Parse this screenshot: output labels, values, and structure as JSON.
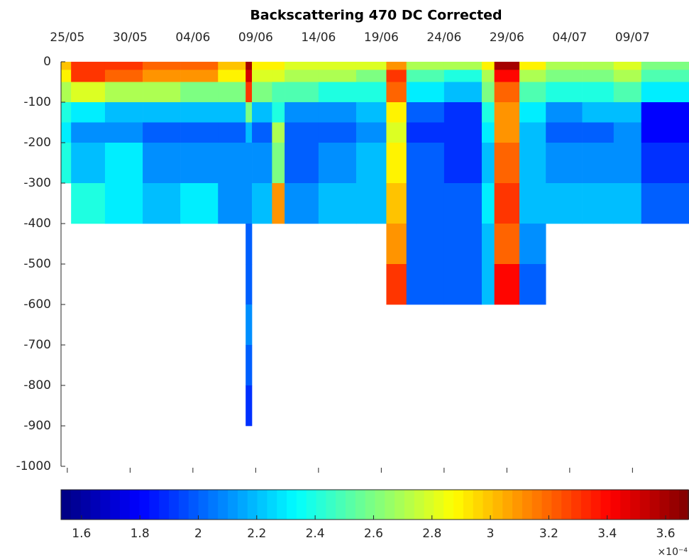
{
  "chart_data": {
    "type": "heatmap",
    "title": "Backscattering 470 DC Corrected",
    "colormap": "jet",
    "x_edges": [
      144.5,
      145.3,
      148,
      151,
      154,
      157,
      159.2,
      159.7,
      161.3,
      162.3,
      165,
      168,
      170.4,
      172,
      175,
      178,
      179,
      181,
      183.1,
      186,
      188.5,
      190.7,
      194.5
    ],
    "y_edges": [
      0,
      -20,
      -50,
      -100,
      -150,
      -200,
      -300,
      -400,
      -500,
      -600,
      -700,
      -800,
      -900
    ],
    "values": [
      [
        3.0,
        3.3,
        3.3,
        3.2,
        3.2,
        3.0,
        3.6,
        2.9,
        2.9,
        2.8,
        2.8,
        2.8,
        3.1,
        2.7,
        2.7,
        2.9,
        3.6,
        2.9,
        2.7,
        2.7,
        2.8,
        2.6
      ],
      [
        2.9,
        3.3,
        3.2,
        3.1,
        3.1,
        2.9,
        3.5,
        2.8,
        2.8,
        2.7,
        2.7,
        2.6,
        3.3,
        2.5,
        2.4,
        2.7,
        3.4,
        2.7,
        2.6,
        2.6,
        2.7,
        2.5
      ],
      [
        2.7,
        2.8,
        2.7,
        2.7,
        2.6,
        2.6,
        3.3,
        2.6,
        2.5,
        2.5,
        2.4,
        2.4,
        3.2,
        2.3,
        2.2,
        2.6,
        3.2,
        2.5,
        2.4,
        2.4,
        2.5,
        2.3
      ],
      [
        2.4,
        2.3,
        2.2,
        2.2,
        2.2,
        2.2,
        2.6,
        2.2,
        2.4,
        2.1,
        2.1,
        2.2,
        2.9,
        2.0,
        1.9,
        2.4,
        3.1,
        2.3,
        2.1,
        2.2,
        2.2,
        1.8
      ],
      [
        2.3,
        2.1,
        2.1,
        2.0,
        2.0,
        2.0,
        2.2,
        2.0,
        2.7,
        2.0,
        2.0,
        2.1,
        2.8,
        1.9,
        1.9,
        2.3,
        3.1,
        2.2,
        2.0,
        2.0,
        2.1,
        1.8
      ],
      [
        2.4,
        2.2,
        2.3,
        2.1,
        2.1,
        2.1,
        2.1,
        2.1,
        2.6,
        2.0,
        2.1,
        2.2,
        2.9,
        2.0,
        1.9,
        2.2,
        3.2,
        2.2,
        2.1,
        2.1,
        2.1,
        1.9
      ],
      [
        null,
        2.4,
        2.3,
        2.2,
        2.3,
        2.1,
        2.1,
        2.2,
        3.1,
        2.1,
        2.2,
        2.2,
        3.0,
        2.0,
        2.0,
        2.3,
        3.3,
        2.2,
        2.2,
        2.2,
        2.2,
        2.0
      ],
      [
        null,
        null,
        null,
        null,
        null,
        null,
        2.0,
        null,
        null,
        null,
        null,
        null,
        3.1,
        2.0,
        2.0,
        2.2,
        3.2,
        2.1,
        null,
        null,
        null,
        null
      ],
      [
        null,
        null,
        null,
        null,
        null,
        null,
        2.0,
        null,
        null,
        null,
        null,
        null,
        3.3,
        2.0,
        2.0,
        2.2,
        3.4,
        2.0,
        null,
        null,
        null,
        null
      ],
      [
        null,
        null,
        null,
        null,
        null,
        null,
        2.1,
        null,
        null,
        null,
        null,
        null,
        null,
        null,
        null,
        null,
        null,
        null,
        null,
        null,
        null,
        null
      ],
      [
        null,
        null,
        null,
        null,
        null,
        null,
        2.0,
        null,
        null,
        null,
        null,
        null,
        null,
        null,
        null,
        null,
        null,
        null,
        null,
        null,
        null,
        null
      ],
      [
        null,
        null,
        null,
        null,
        null,
        null,
        1.9,
        null,
        null,
        null,
        null,
        null,
        null,
        null,
        null,
        null,
        null,
        null,
        null,
        null,
        null,
        null
      ]
    ],
    "xlim": [
      144.5,
      194.5
    ],
    "xticks": [
      {
        "value": 145,
        "label": "25/05"
      },
      {
        "value": 150,
        "label": "30/05"
      },
      {
        "value": 155,
        "label": "04/06"
      },
      {
        "value": 160,
        "label": "09/06"
      },
      {
        "value": 165,
        "label": "14/06"
      },
      {
        "value": 170,
        "label": "19/06"
      },
      {
        "value": 175,
        "label": "24/06"
      },
      {
        "value": 180,
        "label": "29/06"
      },
      {
        "value": 185,
        "label": "04/07"
      },
      {
        "value": 190,
        "label": "09/07"
      }
    ],
    "ylim": [
      -1000,
      0
    ],
    "yticks": [
      0,
      -100,
      -200,
      -300,
      -400,
      -500,
      -600,
      -700,
      -800,
      -900,
      -1000
    ],
    "colorbar": {
      "clim": [
        1.53,
        3.68
      ],
      "ticks": [
        1.6,
        1.8,
        2,
        2.2,
        2.4,
        2.6,
        2.8,
        3,
        3.2,
        3.4,
        3.6
      ],
      "multiplier": "×10⁻⁴"
    }
  }
}
